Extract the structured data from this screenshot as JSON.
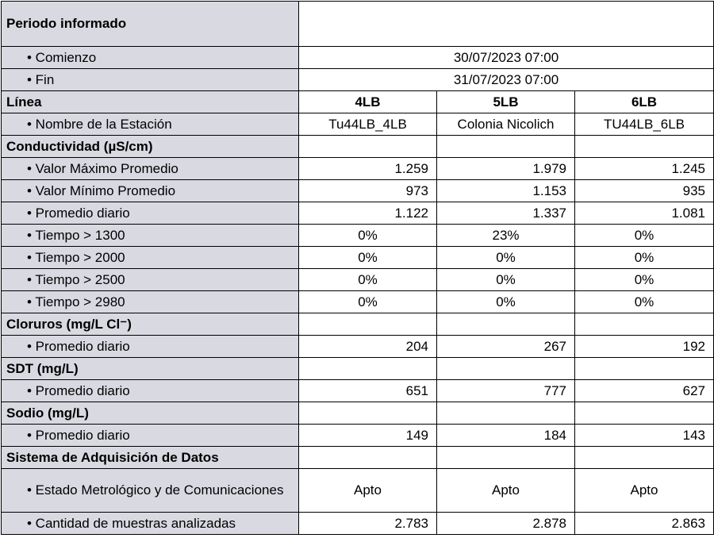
{
  "table": {
    "rows": [
      [
        "Periodo informado"
      ],
      [
        "• Comienzo",
        "30/07/2023 07:00"
      ],
      [
        "• Fin",
        "31/07/2023 07:00"
      ],
      [
        "Línea",
        "4LB",
        "5LB",
        "6LB"
      ],
      [
        "• Nombre de la  Estación",
        "Tu44LB_4LB",
        "Colonia Nicolich",
        "TU44LB_6LB"
      ],
      [
        "Conductividad (µS/cm)"
      ],
      [
        "• Valor Máximo Promedio",
        "1.259",
        "1.979",
        "1.245"
      ],
      [
        "• Valor Mínimo Promedio",
        "973",
        "1.153",
        "935"
      ],
      [
        "• Promedio diario",
        "1.122",
        "1.337",
        "1.081"
      ],
      [
        "• Tiempo > 1300",
        "0%",
        "23%",
        "0%"
      ],
      [
        "• Tiempo > 2000",
        "0%",
        "0%",
        "0%"
      ],
      [
        "• Tiempo > 2500",
        "0%",
        "0%",
        "0%"
      ],
      [
        "• Tiempo > 2980",
        "0%",
        "0%",
        "0%"
      ],
      [
        "Cloruros  (mg/L Cl⁻)"
      ],
      [
        "• Promedio diario",
        "204",
        "267",
        "192"
      ],
      [
        "SDT  (mg/L)"
      ],
      [
        "• Promedio diario",
        "651",
        "777",
        "627"
      ],
      [
        "Sodio  (mg/L)"
      ],
      [
        "• Promedio diario",
        "149",
        "184",
        "143"
      ],
      [
        "Sistema de Adquisición de Datos"
      ],
      [
        "• Estado Metrológico y de Comunicaciones",
        "Apto",
        "Apto",
        "Apto"
      ],
      [
        "• Cantidad de muestras analizadas",
        "2.783",
        "2.878",
        "2.863"
      ]
    ]
  }
}
